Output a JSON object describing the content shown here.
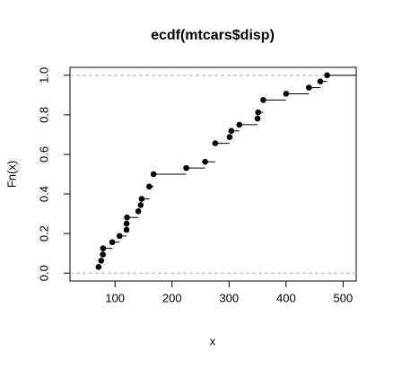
{
  "chart_data": {
    "type": "ecdf",
    "title": "ecdf(mtcars$disp)",
    "x_label": "x",
    "y_label": "Fn(x)",
    "x": [
      71.1,
      75.7,
      78.7,
      79,
      95.1,
      108,
      120.1,
      120.3,
      121,
      140.8,
      145,
      146.7,
      160,
      167.6,
      225,
      258,
      275.8,
      301,
      304,
      318,
      350,
      351,
      360,
      400,
      440,
      460,
      472
    ],
    "values": [
      0.03125,
      0.0625,
      0.09375,
      0.125,
      0.15625,
      0.1875,
      0.21875,
      0.25,
      0.28125,
      0.3125,
      0.34375,
      0.375,
      0.4375,
      0.5,
      0.53125,
      0.5625,
      0.65625,
      0.6875,
      0.71875,
      0.75,
      0.78125,
      0.8125,
      0.875,
      0.90625,
      0.9375,
      0.96875,
      1
    ],
    "color": "#000000",
    "xlim": [
      21,
      523
    ],
    "xticks": [
      100,
      200,
      300,
      400,
      500
    ],
    "ylim": [
      -0.04,
      1.04
    ],
    "yticks": [
      {
        "value": 0,
        "label": "0.0"
      },
      0.2,
      0.4,
      0.6,
      0.8,
      {
        "value": 1,
        "label": "1.0"
      }
    ],
    "reference_lines": [
      0,
      1
    ]
  }
}
